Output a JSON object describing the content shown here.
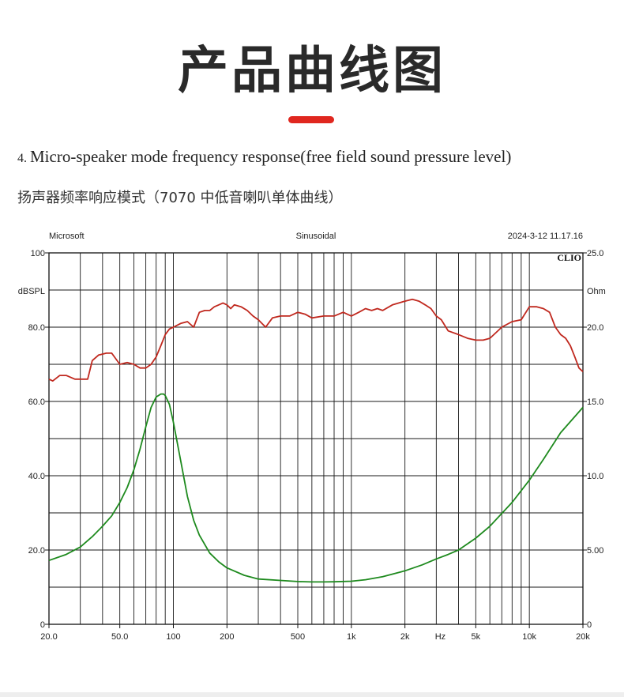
{
  "page": {
    "title": "产品曲线图",
    "caption_num": "4.",
    "caption_en": "Micro-speaker mode frequency response(free field sound pressure level)",
    "caption_cn": "扬声器频率响应模式（7070 中低音喇叭单体曲线）"
  },
  "colors": {
    "accent": "#e0271f",
    "spl_curve": "#c0281e",
    "impedance_curve": "#1e8a1e",
    "grid": "#1a1a1a"
  },
  "chart_data": {
    "type": "line",
    "header_left": "Microsoft",
    "header_center": "Sinusoidal",
    "header_right": "2024-3-12 11.17.16",
    "logo": "CLIO",
    "x_scale": "log",
    "xlim": [
      20,
      20000
    ],
    "x_tick_labels": [
      {
        "value": 20,
        "label": "20.0"
      },
      {
        "value": 50,
        "label": "50.0"
      },
      {
        "value": 100,
        "label": "100"
      },
      {
        "value": 200,
        "label": "200"
      },
      {
        "value": 500,
        "label": "500"
      },
      {
        "value": 1000,
        "label": "1k"
      },
      {
        "value": 2000,
        "label": "2k"
      },
      {
        "value": 5000,
        "label": "5k"
      },
      {
        "value": 10000,
        "label": "10k"
      },
      {
        "value": 20000,
        "label": "20k"
      }
    ],
    "x_unit_label": "Hz",
    "x_unit_at": 3160,
    "y_left": {
      "label": "dBSPL",
      "lim": [
        0,
        100
      ],
      "ticks": [
        {
          "value": 0,
          "label": "0"
        },
        {
          "value": 20,
          "label": "20.0"
        },
        {
          "value": 40,
          "label": "40.0"
        },
        {
          "value": 60,
          "label": "60.0"
        },
        {
          "value": 80,
          "label": "80.0"
        },
        {
          "value": 100,
          "label": "100"
        }
      ]
    },
    "y_right": {
      "label": "Ohm",
      "lim": [
        0,
        25
      ],
      "ticks": [
        {
          "value": 0,
          "label": "0"
        },
        {
          "value": 5,
          "label": "5.00"
        },
        {
          "value": 10,
          "label": "10.0"
        },
        {
          "value": 15,
          "label": "15.0"
        },
        {
          "value": 20,
          "label": "20.0"
        },
        {
          "value": 25,
          "label": "25.0"
        }
      ]
    },
    "grid": true,
    "series": [
      {
        "axis": "left",
        "color": "#c0281e",
        "x": [
          20,
          21,
          23,
          25,
          28,
          31,
          33,
          35,
          38,
          42,
          45,
          50,
          55,
          60,
          65,
          70,
          75,
          80,
          85,
          90,
          95,
          100,
          110,
          120,
          130,
          140,
          150,
          160,
          170,
          180,
          190,
          200,
          210,
          220,
          240,
          260,
          280,
          300,
          330,
          360,
          400,
          450,
          500,
          550,
          600,
          700,
          800,
          900,
          1000,
          1100,
          1200,
          1300,
          1400,
          1500,
          1700,
          2000,
          2200,
          2400,
          2600,
          2800,
          3000,
          3200,
          3500,
          4000,
          4500,
          5000,
          5500,
          6000,
          7000,
          8000,
          9000,
          10000,
          11000,
          12000,
          13000,
          14000,
          15000,
          16000,
          17000,
          18000,
          19000,
          20000
        ],
        "values": [
          66,
          65.5,
          67,
          67,
          66,
          66,
          66,
          71,
          72.5,
          73,
          73,
          70,
          70.5,
          70,
          69,
          69,
          70,
          72,
          75,
          78,
          79.5,
          80,
          81,
          81.5,
          80,
          84,
          84.5,
          84.5,
          85.5,
          86,
          86.5,
          86,
          85,
          86,
          85.5,
          84.5,
          83,
          82,
          80,
          82.5,
          83,
          83,
          84,
          83.5,
          82.5,
          83,
          83,
          84,
          83,
          84,
          85,
          84.5,
          85,
          84.5,
          86,
          87,
          87.5,
          87,
          86,
          85,
          83,
          82,
          79,
          78,
          77,
          76.5,
          76.5,
          77,
          80,
          81.5,
          82,
          85.5,
          85.5,
          85,
          84,
          80,
          78,
          77,
          75,
          72,
          69,
          68
        ]
      },
      {
        "axis": "right",
        "color": "#1e8a1e",
        "x": [
          20,
          25,
          30,
          35,
          40,
          45,
          50,
          55,
          60,
          65,
          70,
          75,
          80,
          85,
          88,
          90,
          95,
          100,
          110,
          120,
          130,
          140,
          160,
          180,
          200,
          250,
          300,
          400,
          500,
          600,
          700,
          800,
          1000,
          1200,
          1500,
          2000,
          2500,
          3000,
          3500,
          4000,
          5000,
          6000,
          8000,
          10000,
          12000,
          15000,
          20000
        ],
        "values": [
          4.3,
          4.7,
          5.2,
          5.9,
          6.6,
          7.3,
          8.2,
          9.2,
          10.4,
          11.8,
          13.3,
          14.6,
          15.3,
          15.5,
          15.5,
          15.4,
          14.8,
          13.6,
          11.0,
          8.6,
          7.0,
          6.0,
          4.8,
          4.2,
          3.8,
          3.3,
          3.05,
          2.95,
          2.88,
          2.85,
          2.85,
          2.86,
          2.9,
          3.0,
          3.2,
          3.6,
          4.0,
          4.4,
          4.7,
          5.0,
          5.8,
          6.6,
          8.2,
          9.7,
          11.1,
          12.9,
          14.6
        ]
      }
    ]
  }
}
